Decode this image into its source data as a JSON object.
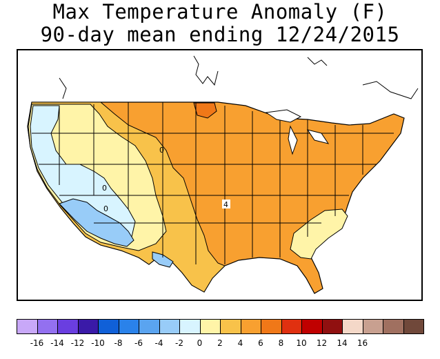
{
  "title": {
    "line1": "Max Temperature Anomaly (F)",
    "line2": "90-day mean ending 12/24/2015"
  },
  "map": {
    "contour_labels": [
      "0",
      "0",
      "0",
      "4"
    ]
  },
  "legend": {
    "colors": [
      "#c8a8f8",
      "#9370f0",
      "#6a3ee0",
      "#3a1aa8",
      "#1060d8",
      "#2a82ea",
      "#5aa4f0",
      "#98ccf8",
      "#d8f4ff",
      "#fff4a8",
      "#f8c24a",
      "#f8a030",
      "#f07818",
      "#e03010",
      "#c00000",
      "#901010",
      "#f4d8c8",
      "#c8a090",
      "#a07060",
      "#70483a"
    ],
    "labels": [
      "-16",
      "-14",
      "-12",
      "-10",
      "-8",
      "-6",
      "-4",
      "-2",
      "0",
      "2",
      "4",
      "6",
      "8",
      "10",
      "12",
      "14",
      "16"
    ]
  }
}
